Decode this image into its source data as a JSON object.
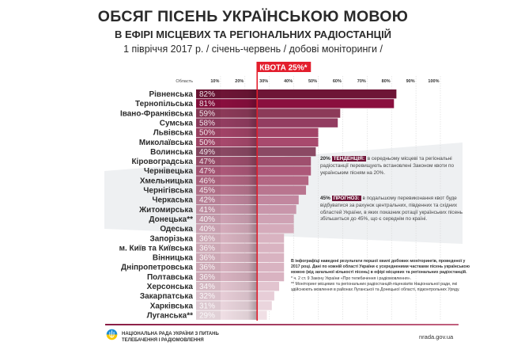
{
  "header": {
    "title": "ОБСЯГ ПІСЕНЬ УКРАЇНСЬКОЮ МОВОЮ",
    "subtitle": "В ЕФІРІ МІСЦЕВИХ ТА РЕГІОНАЛЬНИХ РАДІОСТАНЦІЙ",
    "period": "1 півріччя 2017 р.  / січень-червень / добові моніторинги /"
  },
  "chart_data": {
    "type": "bar",
    "orientation": "horizontal",
    "title": "ОБСЯГ ПІСЕНЬ УКРАЇНСЬКОЮ МОВОЮ В ЕФІРІ МІСЦЕВИХ ТА РЕГІОНАЛЬНИХ РАДІОСТАНЦІЙ",
    "category_axis_label": "Область",
    "xlim": [
      0,
      100
    ],
    "ticks": [
      "10%",
      "20%",
      "30%",
      "40%",
      "50%",
      "60%",
      "70%",
      "80%",
      "90%",
      "100%"
    ],
    "tick_values": [
      10,
      20,
      30,
      40,
      50,
      60,
      70,
      80,
      90,
      100
    ],
    "grid": true,
    "reference_line": {
      "value": 25,
      "label": "КВОТА 25%*",
      "color": "#e31e2d"
    },
    "categories": [
      "Рівненська",
      "Тернопільська",
      "Івано-Франківська",
      "Сумська",
      "Львівська",
      "Миколаївська",
      "Волинська",
      "Кіровоградська",
      "Чернівецька",
      "Хмельницька",
      "Чернігівська",
      "Черкаська",
      "Житомирська",
      "Донецька**",
      "Одеська",
      "Запорізька",
      "м. Київ та Київська",
      "Вінницька",
      "Дніпропетровська",
      "Полтавська",
      "Херсонська",
      "Закарпатська",
      "Харківська",
      "Луганська**"
    ],
    "values": [
      82,
      81,
      59,
      58,
      50,
      50,
      49,
      47,
      47,
      46,
      45,
      42,
      41,
      40,
      40,
      36,
      36,
      36,
      36,
      36,
      34,
      32,
      31,
      29
    ],
    "value_labels": [
      "82%",
      "81%",
      "59%",
      "58%",
      "50%",
      "50%",
      "49%",
      "47%",
      "47%",
      "46%",
      "45%",
      "42%",
      "41%",
      "40%",
      "40%",
      "36%",
      "36%",
      "36%",
      "36%",
      "36%",
      "34%",
      "32%",
      "31%",
      "29%"
    ],
    "colors": [
      "#6e1536",
      "#8a0f3e",
      "#8c3a59",
      "#933d61",
      "#a24367",
      "#a8496d",
      "#8b4964",
      "#9f4f6e",
      "#ad5879",
      "#b36683",
      "#b9758f",
      "#c2879f",
      "#c996ab",
      "#cfa2b4",
      "#d5abbb",
      "#d9b3c1",
      "#d9b3c1",
      "#d9b3c1",
      "#d9b3c1",
      "#d9b3c1",
      "#e2c4cf",
      "#e7cdd7",
      "#ead5dd",
      "#f0dfe5"
    ]
  },
  "notes": {
    "trend_pct": "20%",
    "trend_tag": "ТЕНДЕНЦІЯ:",
    "trend_text": "в середньому місцеві та регіональні радіостанції перевищують встановлені Законом квоти по українським пісням на 20%.",
    "forecast_pct": "45%",
    "forecast_tag": "ПРОГНОЗ:",
    "forecast_text": "в подальшому перевиконання квот буде відбуватися за рахунок центральних, південних та східних областей України, в яких показник ротації українських пісень збільшиться до 45%, що є середнім по країні.",
    "info": "В інфографіці наведені результати першої хвилі добових моніторингів, проведеної у 2017 році. Дані по кожній області України є усередненими частками пісень українською мовою (від загальної кількості пісень) в ефірі місцевих та регіональних радіостанцій.",
    "footnote1": "* ч. 2 ст. 9 Закону України «Про телебачення і радіомовлення».",
    "footnote2": "** Моніторинг місцевих та регіональних радіостанцій-ліцензіатів Національної ради, які здійснюють мовлення в районах Луганської та Донецької області, підконтрольних Уряду."
  },
  "footer": {
    "org_line1": "НАЦІОНАЛЬНА РАДА УКРАЇНИ З ПИТАНЬ",
    "org_line2": "ТЕЛЕБАЧЕННЯ І РАДІОМОВЛЕННЯ",
    "url": "nrada.gov.ua",
    "logo_icon": "trident-emblem-icon"
  }
}
